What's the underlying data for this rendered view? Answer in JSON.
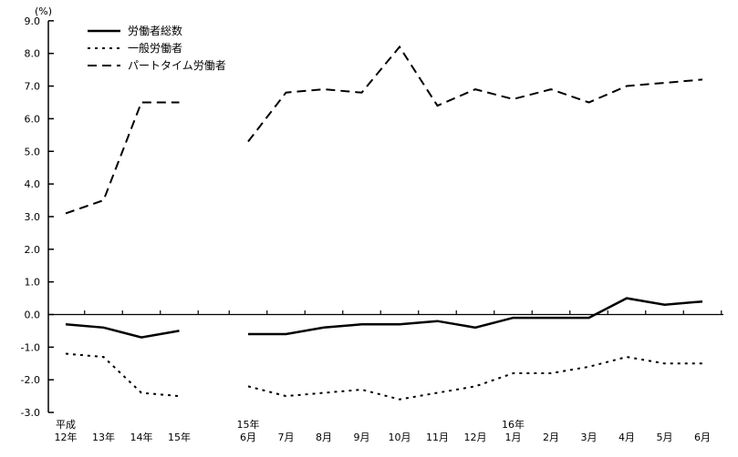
{
  "chart_data": {
    "type": "line",
    "title": "",
    "unit_label": "(%)",
    "xlabel": "",
    "ylabel": "",
    "ylim": [
      -3.0,
      9.0
    ],
    "ytick_step": 1.0,
    "ytick_labels": [
      "9.0",
      "8.0",
      "7.0",
      "6.0",
      "5.0",
      "4.0",
      "3.0",
      "2.0",
      "1.0",
      "0.0",
      "-1.0",
      "-2.0",
      "-3.0"
    ],
    "grid": false,
    "legend_position": "top-left-inside",
    "line_color": "#000000",
    "background_color": "#ffffff",
    "categories": [
      {
        "group": 0,
        "label_top": "平成",
        "label": "12年"
      },
      {
        "group": 0,
        "label_top": "",
        "label": "13年"
      },
      {
        "group": 0,
        "label_top": "",
        "label": "14年"
      },
      {
        "group": 0,
        "label_top": "",
        "label": "15年"
      },
      {
        "group": 1,
        "label_top": "15年",
        "label": "6月"
      },
      {
        "group": 1,
        "label_top": "",
        "label": "7月"
      },
      {
        "group": 1,
        "label_top": "",
        "label": "8月"
      },
      {
        "group": 1,
        "label_top": "",
        "label": "9月"
      },
      {
        "group": 1,
        "label_top": "",
        "label": "10月"
      },
      {
        "group": 1,
        "label_top": "",
        "label": "11月"
      },
      {
        "group": 1,
        "label_top": "",
        "label": "12月"
      },
      {
        "group": 1,
        "label_top": "16年",
        "label": "1月"
      },
      {
        "group": 1,
        "label_top": "",
        "label": "2月"
      },
      {
        "group": 1,
        "label_top": "",
        "label": "3月"
      },
      {
        "group": 1,
        "label_top": "",
        "label": "4月"
      },
      {
        "group": 1,
        "label_top": "",
        "label": "5月"
      },
      {
        "group": 1,
        "label_top": "",
        "label": "6月"
      }
    ],
    "series": [
      {
        "name": "労働者総数",
        "line_style": "solid",
        "values": [
          -0.3,
          -0.4,
          -0.7,
          -0.5,
          -0.6,
          -0.6,
          -0.4,
          -0.3,
          -0.3,
          -0.2,
          -0.4,
          -0.1,
          -0.1,
          -0.1,
          0.5,
          0.3,
          0.4
        ]
      },
      {
        "name": "一般労働者",
        "line_style": "dotted",
        "values": [
          -1.2,
          -1.3,
          -2.4,
          -2.5,
          -2.2,
          -2.5,
          -2.4,
          -2.3,
          -2.6,
          -2.4,
          -2.2,
          -1.8,
          -1.8,
          -1.6,
          -1.3,
          -1.5,
          -1.5
        ]
      },
      {
        "name": "パートタイム労働者",
        "line_style": "dashed",
        "values": [
          3.1,
          3.5,
          6.5,
          6.5,
          5.3,
          6.8,
          6.9,
          6.8,
          8.2,
          6.4,
          6.9,
          6.6,
          6.9,
          6.5,
          7.0,
          7.1,
          7.2
        ]
      }
    ]
  }
}
